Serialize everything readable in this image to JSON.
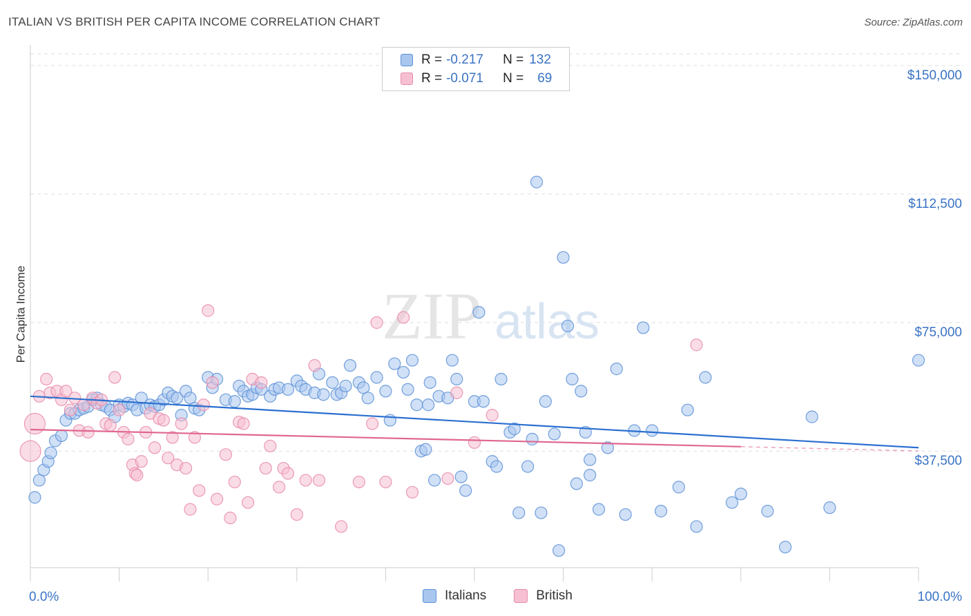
{
  "title": "ITALIAN VS BRITISH PER CAPITA INCOME CORRELATION CHART",
  "source": "Source: ZipAtlas.com",
  "watermark": {
    "zip": "ZIP",
    "atlas": "atlas"
  },
  "legend": {
    "italians": {
      "r_label": "R = ",
      "r_value": "-0.217",
      "n_label": "N = ",
      "n_value": "132"
    },
    "british": {
      "r_label": "R = ",
      "r_value": "-0.071",
      "n_label": "N = ",
      "n_value": "69"
    }
  },
  "bottom_legend": {
    "italians": "Italians",
    "british": "British"
  },
  "colors": {
    "italians_fill": "#a9c6ee",
    "italians_stroke": "#5b8fd6",
    "italians_line": "#2a6fd0",
    "british_fill": "#f6c0d2",
    "british_stroke": "#e889a8",
    "british_line": "#e06690",
    "axis_label": "#3a73c4"
  },
  "chart_data": {
    "type": "scatter",
    "xlabel": "",
    "ylabel": "Per Capita Income",
    "x_tick_labels": [
      "0.0%",
      "100.0%"
    ],
    "y_tick_labels": [
      "$37,500",
      "$75,000",
      "$112,500",
      "$150,000"
    ],
    "xlim": [
      0,
      100
    ],
    "ylim": [
      3500,
      154000
    ],
    "grid": true,
    "series": [
      {
        "name": "Italians",
        "points": [
          [
            0.5,
            24000
          ],
          [
            1,
            29000
          ],
          [
            1.5,
            32000
          ],
          [
            2,
            34500
          ],
          [
            2.3,
            37000
          ],
          [
            2.8,
            40500
          ],
          [
            3.5,
            42000
          ],
          [
            4,
            46500
          ],
          [
            4.5,
            48500
          ],
          [
            5,
            48500
          ],
          [
            5.5,
            49500
          ],
          [
            6,
            50000
          ],
          [
            6.5,
            50500
          ],
          [
            7,
            52500
          ],
          [
            7.5,
            53000
          ],
          [
            8,
            51000
          ],
          [
            8.5,
            50500
          ],
          [
            9,
            49500
          ],
          [
            9.5,
            47500
          ],
          [
            10,
            51000
          ],
          [
            10.5,
            50500
          ],
          [
            11,
            51500
          ],
          [
            11.5,
            51000
          ],
          [
            12,
            49500
          ],
          [
            12.5,
            53000
          ],
          [
            13,
            50000
          ],
          [
            13.5,
            51000
          ],
          [
            14,
            50500
          ],
          [
            14.5,
            51000
          ],
          [
            15,
            52500
          ],
          [
            15.5,
            54500
          ],
          [
            16,
            53500
          ],
          [
            16.5,
            53000
          ],
          [
            17,
            48000
          ],
          [
            17.5,
            55000
          ],
          [
            18,
            53000
          ],
          [
            18.5,
            50000
          ],
          [
            19,
            49500
          ],
          [
            20,
            59000
          ],
          [
            20.5,
            56000
          ],
          [
            21,
            58500
          ],
          [
            22,
            52500
          ],
          [
            23,
            52000
          ],
          [
            23.5,
            56500
          ],
          [
            24,
            55000
          ],
          [
            24.5,
            53500
          ],
          [
            25,
            54000
          ],
          [
            25.5,
            56000
          ],
          [
            26,
            55500
          ],
          [
            27,
            53500
          ],
          [
            27.5,
            55500
          ],
          [
            28,
            56000
          ],
          [
            29,
            55500
          ],
          [
            30,
            58000
          ],
          [
            30.5,
            56500
          ],
          [
            31,
            55500
          ],
          [
            32,
            54500
          ],
          [
            32.5,
            60000
          ],
          [
            33,
            54000
          ],
          [
            34,
            57500
          ],
          [
            34.5,
            54000
          ],
          [
            35,
            54500
          ],
          [
            35.5,
            56500
          ],
          [
            36,
            62500
          ],
          [
            37,
            57500
          ],
          [
            37.5,
            56000
          ],
          [
            38,
            53000
          ],
          [
            39,
            59000
          ],
          [
            40,
            55000
          ],
          [
            40.5,
            46500
          ],
          [
            41,
            63000
          ],
          [
            42,
            60500
          ],
          [
            42.5,
            55500
          ],
          [
            43,
            64000
          ],
          [
            43.5,
            51000
          ],
          [
            44,
            37500
          ],
          [
            44.5,
            38000
          ],
          [
            44.8,
            51000
          ],
          [
            45,
            57500
          ],
          [
            45.5,
            29000
          ],
          [
            46,
            53500
          ],
          [
            47,
            53000
          ],
          [
            47.5,
            64000
          ],
          [
            48,
            58500
          ],
          [
            48.5,
            30000
          ],
          [
            49,
            26000
          ],
          [
            50,
            52000
          ],
          [
            50.5,
            78000
          ],
          [
            51,
            52000
          ],
          [
            52,
            34500
          ],
          [
            52.5,
            33000
          ],
          [
            53,
            58500
          ],
          [
            54,
            43000
          ],
          [
            54.5,
            44000
          ],
          [
            55,
            19500
          ],
          [
            56,
            33000
          ],
          [
            56.5,
            41000
          ],
          [
            57,
            116000
          ],
          [
            57.5,
            19500
          ],
          [
            58,
            52000
          ],
          [
            59,
            42500
          ],
          [
            59.5,
            8500
          ],
          [
            60,
            94000
          ],
          [
            60.5,
            74000
          ],
          [
            61,
            58500
          ],
          [
            61.5,
            28000
          ],
          [
            62,
            55000
          ],
          [
            62.5,
            43000
          ],
          [
            63,
            35000
          ],
          [
            63,
            30500
          ],
          [
            64,
            20500
          ],
          [
            65,
            38500
          ],
          [
            66,
            61500
          ],
          [
            67,
            19000
          ],
          [
            68,
            43500
          ],
          [
            69,
            73500
          ],
          [
            70,
            43500
          ],
          [
            71,
            20000
          ],
          [
            73,
            27000
          ],
          [
            74,
            49500
          ],
          [
            75,
            15500
          ],
          [
            76,
            59000
          ],
          [
            79,
            22500
          ],
          [
            80,
            25000
          ],
          [
            83,
            20000
          ],
          [
            85,
            9500
          ],
          [
            88,
            47500
          ],
          [
            90,
            21000
          ],
          [
            100,
            64000
          ]
        ]
      },
      {
        "name": "British",
        "points": [
          [
            0,
            37500
          ],
          [
            0.5,
            45500
          ],
          [
            1,
            53500
          ],
          [
            1.8,
            58500
          ],
          [
            2.2,
            54500
          ],
          [
            3,
            55000
          ],
          [
            3.5,
            52500
          ],
          [
            4,
            55000
          ],
          [
            4.5,
            49500
          ],
          [
            5,
            53000
          ],
          [
            5.5,
            43500
          ],
          [
            6,
            51000
          ],
          [
            6.5,
            43000
          ],
          [
            7,
            53000
          ],
          [
            7.5,
            51500
          ],
          [
            8,
            52500
          ],
          [
            8.5,
            45500
          ],
          [
            9,
            45000
          ],
          [
            9.5,
            59000
          ],
          [
            10,
            49500
          ],
          [
            10.5,
            43000
          ],
          [
            11,
            41000
          ],
          [
            11.5,
            33500
          ],
          [
            11.8,
            31000
          ],
          [
            12,
            30500
          ],
          [
            12.5,
            34500
          ],
          [
            13,
            43000
          ],
          [
            13.5,
            48500
          ],
          [
            14,
            38500
          ],
          [
            14.5,
            47000
          ],
          [
            15,
            46500
          ],
          [
            15.5,
            35500
          ],
          [
            16,
            41500
          ],
          [
            16.5,
            33500
          ],
          [
            17,
            45500
          ],
          [
            17.5,
            32500
          ],
          [
            18,
            20500
          ],
          [
            18.5,
            41500
          ],
          [
            19,
            26000
          ],
          [
            19.5,
            51000
          ],
          [
            20,
            78500
          ],
          [
            20.5,
            57500
          ],
          [
            21,
            23500
          ],
          [
            22,
            36500
          ],
          [
            22.5,
            18000
          ],
          [
            23,
            28500
          ],
          [
            23.5,
            46000
          ],
          [
            24,
            45500
          ],
          [
            24.5,
            22500
          ],
          [
            25,
            58500
          ],
          [
            26,
            57500
          ],
          [
            26.5,
            32500
          ],
          [
            27,
            39000
          ],
          [
            28,
            27000
          ],
          [
            28.5,
            32500
          ],
          [
            29,
            31000
          ],
          [
            30,
            19000
          ],
          [
            31,
            29000
          ],
          [
            32,
            62500
          ],
          [
            32.5,
            29000
          ],
          [
            35,
            15500
          ],
          [
            37,
            28500
          ],
          [
            38.5,
            45500
          ],
          [
            39,
            75000
          ],
          [
            40,
            28500
          ],
          [
            42,
            76500
          ],
          [
            43,
            25500
          ],
          [
            47,
            29500
          ],
          [
            48,
            54500
          ],
          [
            50,
            40000
          ],
          [
            52,
            48000
          ],
          [
            75,
            68500
          ]
        ]
      }
    ],
    "trend_lines": [
      {
        "name": "Italians",
        "x": [
          0,
          100
        ],
        "y": [
          53500,
          38500
        ]
      },
      {
        "name": "British",
        "x": [
          0,
          80
        ],
        "y": [
          43800,
          38800
        ]
      }
    ]
  }
}
